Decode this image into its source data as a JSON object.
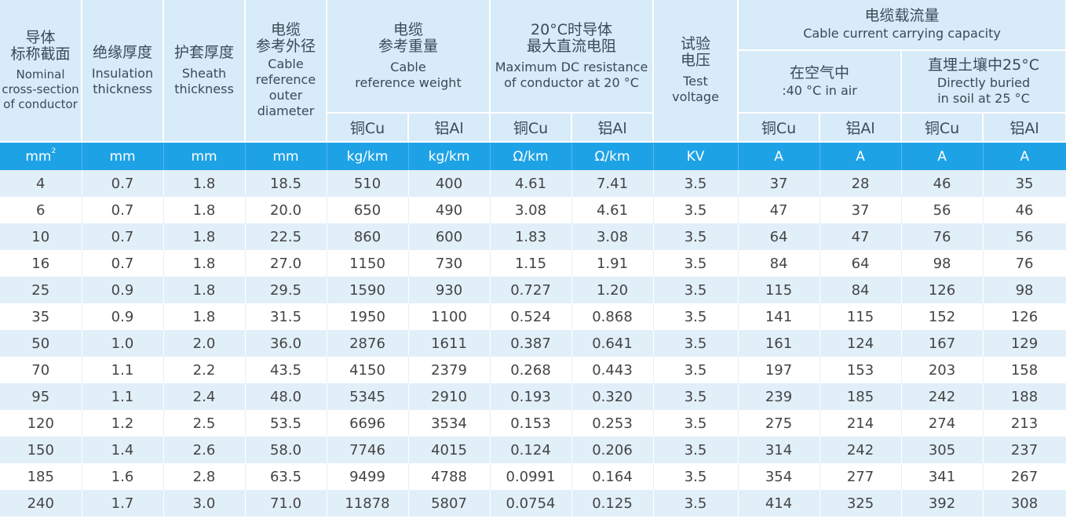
{
  "header": {
    "nominal": {
      "zh": "导体\n标称截面",
      "en": "Nominal\ncross-section\nof conductor"
    },
    "insulation": {
      "zh": "绝缘厚度",
      "en": "Insulation\nthickness"
    },
    "sheath": {
      "zh": "护套厚度",
      "en": "Sheath\nthickness"
    },
    "diameter": {
      "zh": "电缆\n参考外径",
      "en": "Cable\nreference\nouter\ndiameter"
    },
    "weight": {
      "zh": "电缆\n参考重量",
      "en": "Cable\nreference weight"
    },
    "resistance": {
      "zh": "20°C时导体\n最大直流电阻",
      "en": "Maximum DC resistance\nof conductor at 20 °C"
    },
    "voltage": {
      "zh": "试验\n电压",
      "en": "Test\nvoltage"
    },
    "capacity": {
      "zh": "电缆载流量",
      "en": "Cable current carrying capacity"
    },
    "air": {
      "zh": "在空气中",
      "en": ":40 °C in air"
    },
    "soil": {
      "zh": "直埋土壤中25°C",
      "en": "Directly buried\nin soil at 25 °C"
    },
    "cu": "铜Cu",
    "al": "铝Al"
  },
  "units": [
    "mm",
    "mm",
    "mm",
    "mm",
    "kg/km",
    "kg/km",
    "Ω/km",
    "Ω/km",
    "KV",
    "A",
    "A",
    "A",
    "A"
  ],
  "units_first_sup": "2",
  "rows": [
    [
      "4",
      "0.7",
      "1.8",
      "18.5",
      "510",
      "400",
      "4.61",
      "7.41",
      "3.5",
      "37",
      "28",
      "46",
      "35"
    ],
    [
      "6",
      "0.7",
      "1.8",
      "20.0",
      "650",
      "490",
      "3.08",
      "4.61",
      "3.5",
      "47",
      "37",
      "56",
      "46"
    ],
    [
      "10",
      "0.7",
      "1.8",
      "22.5",
      "860",
      "600",
      "1.83",
      "3.08",
      "3.5",
      "64",
      "47",
      "76",
      "56"
    ],
    [
      "16",
      "0.7",
      "1.8",
      "27.0",
      "1150",
      "730",
      "1.15",
      "1.91",
      "3.5",
      "84",
      "64",
      "98",
      "76"
    ],
    [
      "25",
      "0.9",
      "1.8",
      "29.5",
      "1590",
      "930",
      "0.727",
      "1.20",
      "3.5",
      "115",
      "84",
      "126",
      "98"
    ],
    [
      "35",
      "0.9",
      "1.8",
      "31.5",
      "1950",
      "1100",
      "0.524",
      "0.868",
      "3.5",
      "141",
      "115",
      "152",
      "126"
    ],
    [
      "50",
      "1.0",
      "2.0",
      "36.0",
      "2876",
      "1611",
      "0.387",
      "0.641",
      "3.5",
      "161",
      "124",
      "167",
      "129"
    ],
    [
      "70",
      "1.1",
      "2.2",
      "43.5",
      "4150",
      "2379",
      "0.268",
      "0.443",
      "3.5",
      "197",
      "153",
      "203",
      "158"
    ],
    [
      "95",
      "1.1",
      "2.4",
      "48.0",
      "5345",
      "2910",
      "0.193",
      "0.320",
      "3.5",
      "239",
      "185",
      "242",
      "188"
    ],
    [
      "120",
      "1.2",
      "2.5",
      "53.5",
      "6696",
      "3534",
      "0.153",
      "0.253",
      "3.5",
      "275",
      "214",
      "274",
      "213"
    ],
    [
      "150",
      "1.4",
      "2.6",
      "58.0",
      "7746",
      "4015",
      "0.124",
      "0.206",
      "3.5",
      "314",
      "242",
      "305",
      "237"
    ],
    [
      "185",
      "1.6",
      "2.8",
      "63.5",
      "9499",
      "4788",
      "0.0991",
      "0.164",
      "3.5",
      "354",
      "277",
      "341",
      "267"
    ],
    [
      "240",
      "1.7",
      "3.0",
      "71.0",
      "11878",
      "5807",
      "0.0754",
      "0.125",
      "3.5",
      "414",
      "325",
      "392",
      "308"
    ]
  ]
}
